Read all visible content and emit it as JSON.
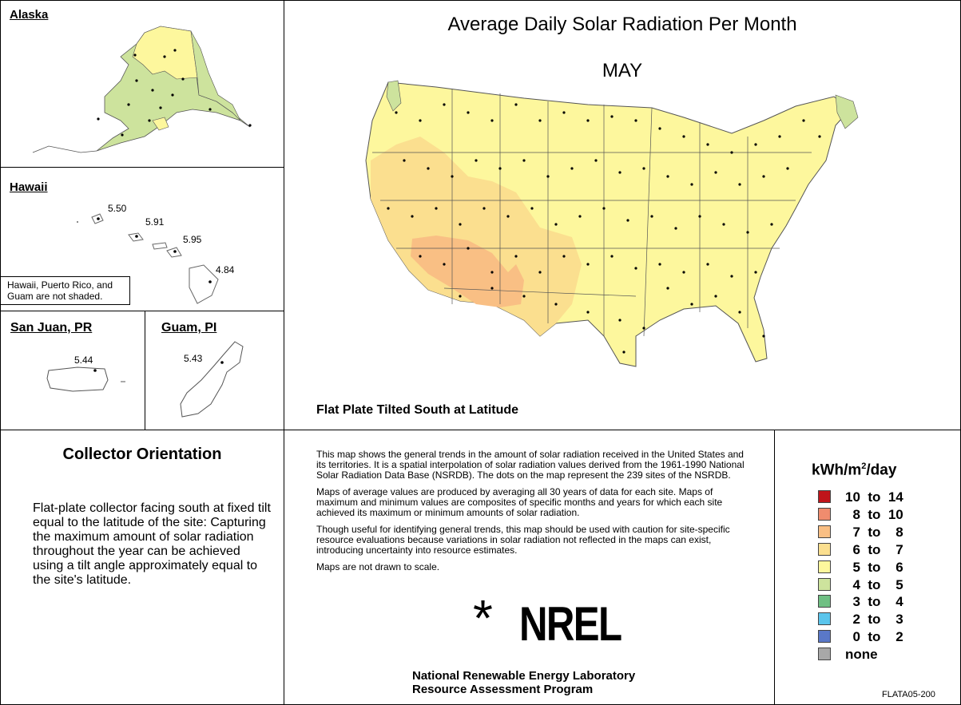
{
  "title": "Average Daily Solar Radiation Per Month",
  "month": "MAY",
  "subtitle": "Flat Plate Tilted South at Latitude",
  "colors": {
    "c1014": "#c0141a",
    "c810": "#f08c6e",
    "c78": "#f9bf84",
    "c67": "#fbdf8f",
    "c56": "#fdf79d",
    "c45": "#cde39d",
    "c34": "#6fbf83",
    "c23": "#5bc5ec",
    "c02": "#5a78c8",
    "none": "#a8a8a8"
  },
  "insets": {
    "alaska": {
      "label": "Alaska"
    },
    "hawaii": {
      "label": "Hawaii",
      "values": [
        "5.50",
        "5.91",
        "5.95",
        "4.84"
      ],
      "note": "Hawaii, Puerto Rico, and Guam are not shaded."
    },
    "puerto_rico": {
      "label": "San Juan, PR",
      "value": "5.44"
    },
    "guam": {
      "label": "Guam, PI",
      "value": "5.43"
    }
  },
  "collector": {
    "heading": "Collector Orientation",
    "text": "Flat-plate collector facing south at fixed tilt equal to the latitude of the site:  Capturing the maximum amount of solar radiation throughout the year can be achieved using a tilt angle approximately equal to the site's latitude."
  },
  "description": {
    "p1": "This map shows the general trends in the amount of solar radiation received in the United States and its territories.  It is a spatial interpolation of solar radiation values derived from the 1961-1990 National Solar Radiation Data Base (NSRDB).  The dots on the map represent the 239 sites of the NSRDB.",
    "p2": "Maps of average values are produced by averaging all 30 years of data for each site. Maps of maximum and minimum values are composites of specific months and years for which each site achieved its maximum or minimum amounts of solar radiation.",
    "p3": "Though useful for identifying general trends, this map should be used with caution for site-specific resource evaluations because variations in solar radiation not reflected in the maps can exist, introducing uncertainty into resource estimates.",
    "p4": "Maps are not drawn to scale."
  },
  "logo": {
    "text": "NREL"
  },
  "org": {
    "line1": "National Renewable Energy Laboratory",
    "line2": "Resource Assessment Program"
  },
  "legend": {
    "unit_pre": "kWh/m",
    "unit_sup": "2",
    "unit_post": "/day",
    "items": [
      {
        "range": "10  to  14"
      },
      {
        "range": "  8  to  10"
      },
      {
        "range": "  7  to    8"
      },
      {
        "range": "  6  to    7"
      },
      {
        "range": "  5  to    6"
      },
      {
        "range": "  4  to    5"
      },
      {
        "range": "  3  to    4"
      },
      {
        "range": "  2  to    3"
      },
      {
        "range": "  0  to    2"
      },
      {
        "range": "none"
      }
    ]
  },
  "code": "FLATA05-200"
}
